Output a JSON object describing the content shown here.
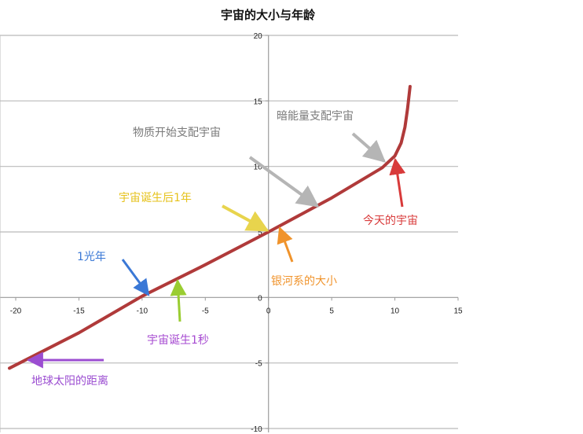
{
  "chart_data": {
    "type": "line",
    "title": "宇宙的大小与年龄",
    "xlim": [
      -20,
      15
    ],
    "ylim": [
      -10,
      20
    ],
    "x_ticks": [
      -20,
      -15,
      -10,
      -5,
      0,
      5,
      10,
      15
    ],
    "y_ticks": [
      -10,
      -5,
      0,
      5,
      10,
      15,
      20
    ],
    "x_tick_labels": [
      "-20",
      "-15",
      "-10",
      "-5",
      "0",
      "5",
      "10",
      "15"
    ],
    "y_tick_labels": [
      "-10",
      "-5",
      "0",
      "5",
      "10",
      "15",
      "20"
    ],
    "grid": "horizontal",
    "series": [
      {
        "color": "#b03a3a",
        "x": [
          -20.5,
          -15,
          -10,
          -5,
          0,
          5,
          9,
          10,
          10.5,
          10.8,
          11,
          11.2
        ],
        "y": [
          -5.4,
          -2.7,
          0.1,
          2.5,
          5.0,
          7.6,
          9.9,
          10.8,
          11.8,
          13.0,
          14.4,
          16.1
        ]
      }
    ],
    "annotations": [
      {
        "text": "暗能量支配宇宙",
        "color": "#7a7a7a",
        "point": [
          9.2,
          10.3
        ]
      },
      {
        "text": "物质开始支配宇宙",
        "color": "#7a7a7a",
        "point": [
          3.8,
          6.8
        ]
      },
      {
        "text": "宇宙诞生后1年",
        "color": "#e6c21a",
        "point": [
          0.2,
          5.0
        ]
      },
      {
        "text": "今天的宇宙",
        "color": "#d83a3a",
        "point": [
          10.0,
          10.6
        ]
      },
      {
        "text": "银河系的大小",
        "color": "#f0932b",
        "point": [
          0.8,
          5.2
        ]
      },
      {
        "text": "1光年",
        "color": "#3a78d6",
        "point": [
          -9.5,
          0.1
        ]
      },
      {
        "text": "宇宙诞生1秒",
        "color": "#a64ad1",
        "point": [
          -7.0,
          1.3
        ]
      },
      {
        "text": "地球太阳的距离",
        "color": "#9b4dd1",
        "point": [
          -19.3,
          -4.9
        ]
      }
    ]
  }
}
